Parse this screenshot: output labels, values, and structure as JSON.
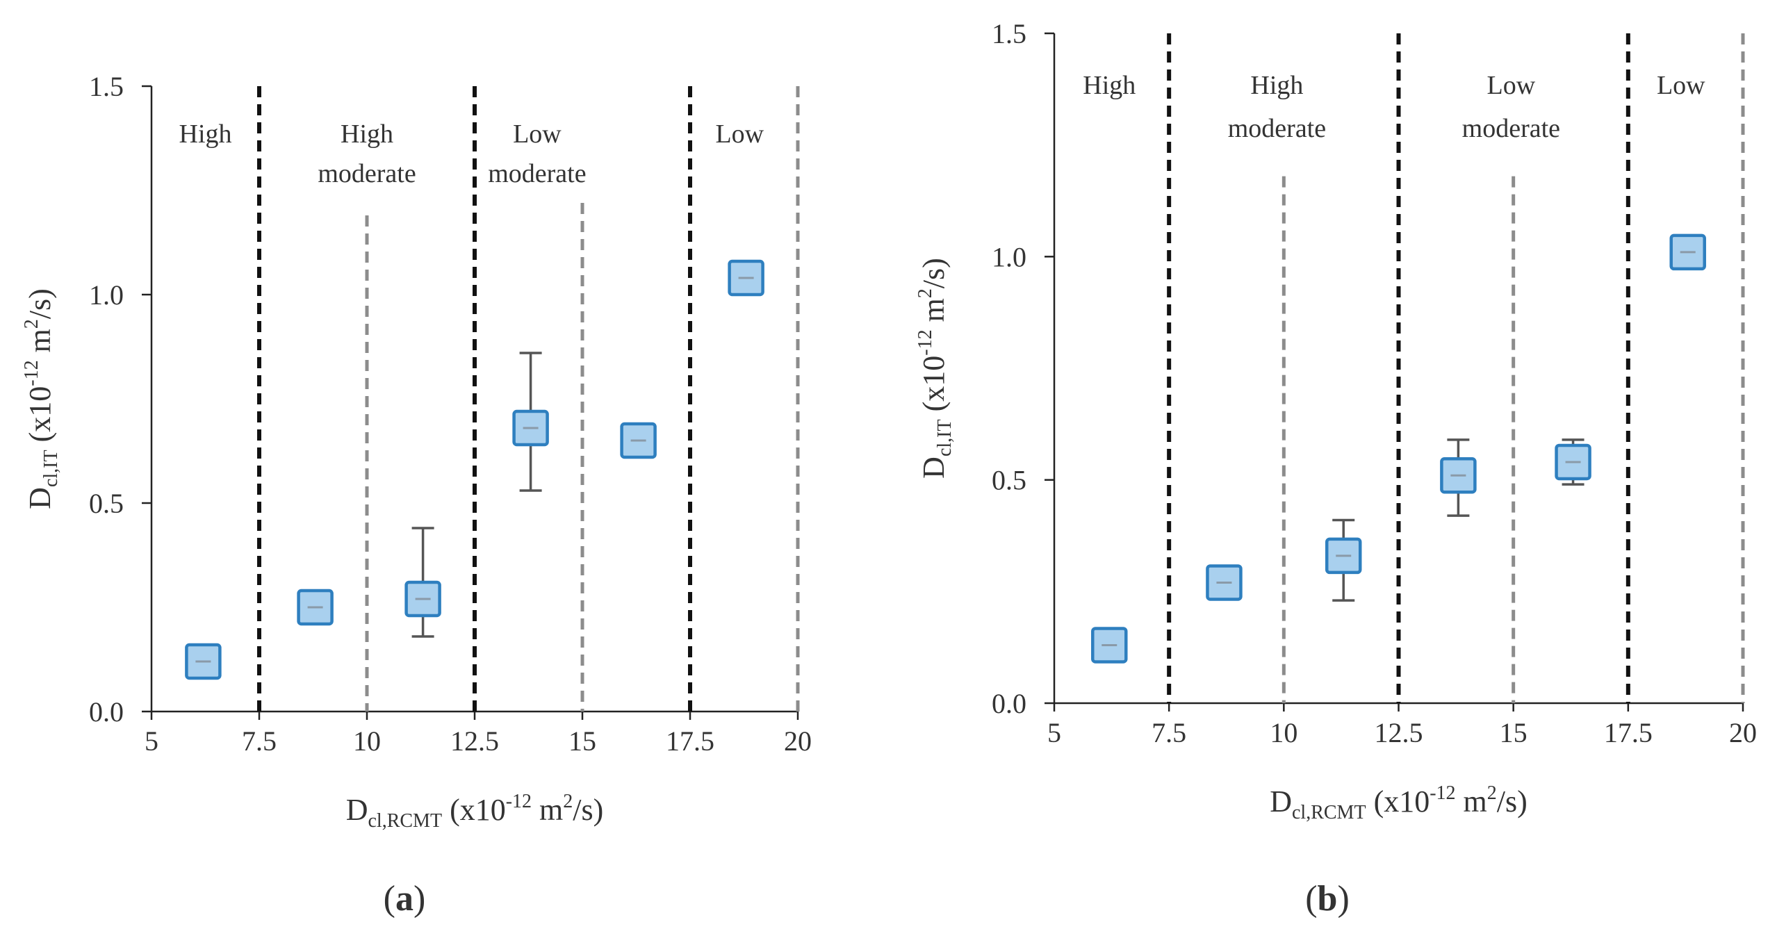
{
  "chart_data": [
    {
      "type": "scatter",
      "panel_label": {
        "open": "(",
        "letter": "a",
        "close": ")"
      },
      "xlabel": {
        "main": "D",
        "sub": "cl,RCMT",
        "pre": " (x10",
        "sup1": "-12",
        "mid": " m",
        "sup2": "2",
        "post": "/s)"
      },
      "ylabel": {
        "main": "D",
        "sub": "cl,IT",
        "pre": " (x10",
        "sup1": "-12",
        "mid": " m",
        "sup2": "2",
        "post": "/s)"
      },
      "xlim": [
        5,
        20
      ],
      "ylim": [
        0,
        1.5
      ],
      "x_ticks": [
        5,
        7.5,
        10,
        12.5,
        15,
        17.5,
        20
      ],
      "x_tick_labels": [
        "5",
        "7.5",
        "10",
        "12.5",
        "15",
        "17.5",
        "20"
      ],
      "y_ticks": [
        0,
        0.5,
        1.0,
        1.5
      ],
      "y_tick_labels": [
        "0.0",
        "0.5",
        "1.0",
        "1.5"
      ],
      "boundaries": [
        {
          "x": 7.5,
          "style": "major"
        },
        {
          "x": 10,
          "style": "minor",
          "ytop": 1.19
        },
        {
          "x": 12.5,
          "style": "major"
        },
        {
          "x": 15,
          "style": "minor",
          "ytop": 1.22
        },
        {
          "x": 17.5,
          "style": "major"
        },
        {
          "x": 20,
          "style": "minor",
          "ytop": 1.5
        }
      ],
      "zones": [
        {
          "lines": [
            "High"
          ],
          "xc": 6.25
        },
        {
          "lines": [
            "High",
            "moderate"
          ],
          "xc": 10.0
        },
        {
          "lines": [
            "Low",
            "moderate"
          ],
          "xc": 13.95
        },
        {
          "lines": [
            "Low"
          ],
          "xc": 18.65
        }
      ],
      "series": [
        {
          "points": [
            {
              "x": 6.2,
              "y": 0.12,
              "err_low": null,
              "err_high": null
            },
            {
              "x": 8.8,
              "y": 0.25,
              "err_low": null,
              "err_high": null
            },
            {
              "x": 11.3,
              "y": 0.27,
              "err_low": 0.18,
              "err_high": 0.44
            },
            {
              "x": 13.8,
              "y": 0.68,
              "err_low": 0.53,
              "err_high": 0.86
            },
            {
              "x": 16.3,
              "y": 0.65,
              "err_low": null,
              "err_high": null
            },
            {
              "x": 18.8,
              "y": 1.04,
              "err_low": null,
              "err_high": null
            }
          ]
        }
      ],
      "colors": {
        "marker_fill": "#a9d0ee",
        "marker_edge": "#2e7fbf",
        "major_line": "#111111",
        "minor_line": "#8c8c8c",
        "error_bar": "#555555"
      }
    },
    {
      "type": "scatter",
      "panel_label": {
        "open": "(",
        "letter": "b",
        "close": ")"
      },
      "xlabel": {
        "main": "D",
        "sub": "cl,RCMT",
        "pre": " (x10",
        "sup1": "-12",
        "mid": " m",
        "sup2": "2",
        "post": "/s)"
      },
      "ylabel": {
        "main": "D",
        "sub": "cl,IT",
        "pre": " (x10",
        "sup1": "-12",
        "mid": " m",
        "sup2": "2",
        "post": "/s)"
      },
      "xlim": [
        5,
        20
      ],
      "ylim": [
        0,
        1.5
      ],
      "x_ticks": [
        5,
        7.5,
        10,
        12.5,
        15,
        17.5,
        20
      ],
      "x_tick_labels": [
        "5",
        "7.5",
        "10",
        "12.5",
        "15",
        "17.5",
        "20"
      ],
      "y_ticks": [
        0,
        0.5,
        1.0,
        1.5
      ],
      "y_tick_labels": [
        "0.0",
        "0.5",
        "1.0",
        "1.5"
      ],
      "boundaries": [
        {
          "x": 7.5,
          "style": "major"
        },
        {
          "x": 10,
          "style": "minor",
          "ytop": 1.18
        },
        {
          "x": 12.5,
          "style": "major"
        },
        {
          "x": 15,
          "style": "minor",
          "ytop": 1.18
        },
        {
          "x": 17.5,
          "style": "major"
        },
        {
          "x": 20,
          "style": "minor",
          "ytop": 1.5
        }
      ],
      "zones": [
        {
          "lines": [
            "High"
          ],
          "xc": 6.2
        },
        {
          "lines": [
            "High",
            "moderate"
          ],
          "xc": 9.85
        },
        {
          "lines": [
            "Low",
            "moderate"
          ],
          "xc": 14.95
        },
        {
          "lines": [
            "Low"
          ],
          "xc": 18.65
        }
      ],
      "series": [
        {
          "points": [
            {
              "x": 6.2,
              "y": 0.13,
              "err_low": null,
              "err_high": null
            },
            {
              "x": 8.7,
              "y": 0.27,
              "err_low": null,
              "err_high": null
            },
            {
              "x": 11.3,
              "y": 0.33,
              "err_low": 0.23,
              "err_high": 0.41
            },
            {
              "x": 13.8,
              "y": 0.51,
              "err_low": 0.42,
              "err_high": 0.59
            },
            {
              "x": 16.3,
              "y": 0.54,
              "err_low": 0.49,
              "err_high": 0.59
            },
            {
              "x": 18.8,
              "y": 1.01,
              "err_low": null,
              "err_high": null
            }
          ]
        }
      ],
      "colors": {
        "marker_fill": "#a9d0ee",
        "marker_edge": "#2e7fbf",
        "major_line": "#111111",
        "minor_line": "#8c8c8c",
        "error_bar": "#555555"
      }
    }
  ]
}
